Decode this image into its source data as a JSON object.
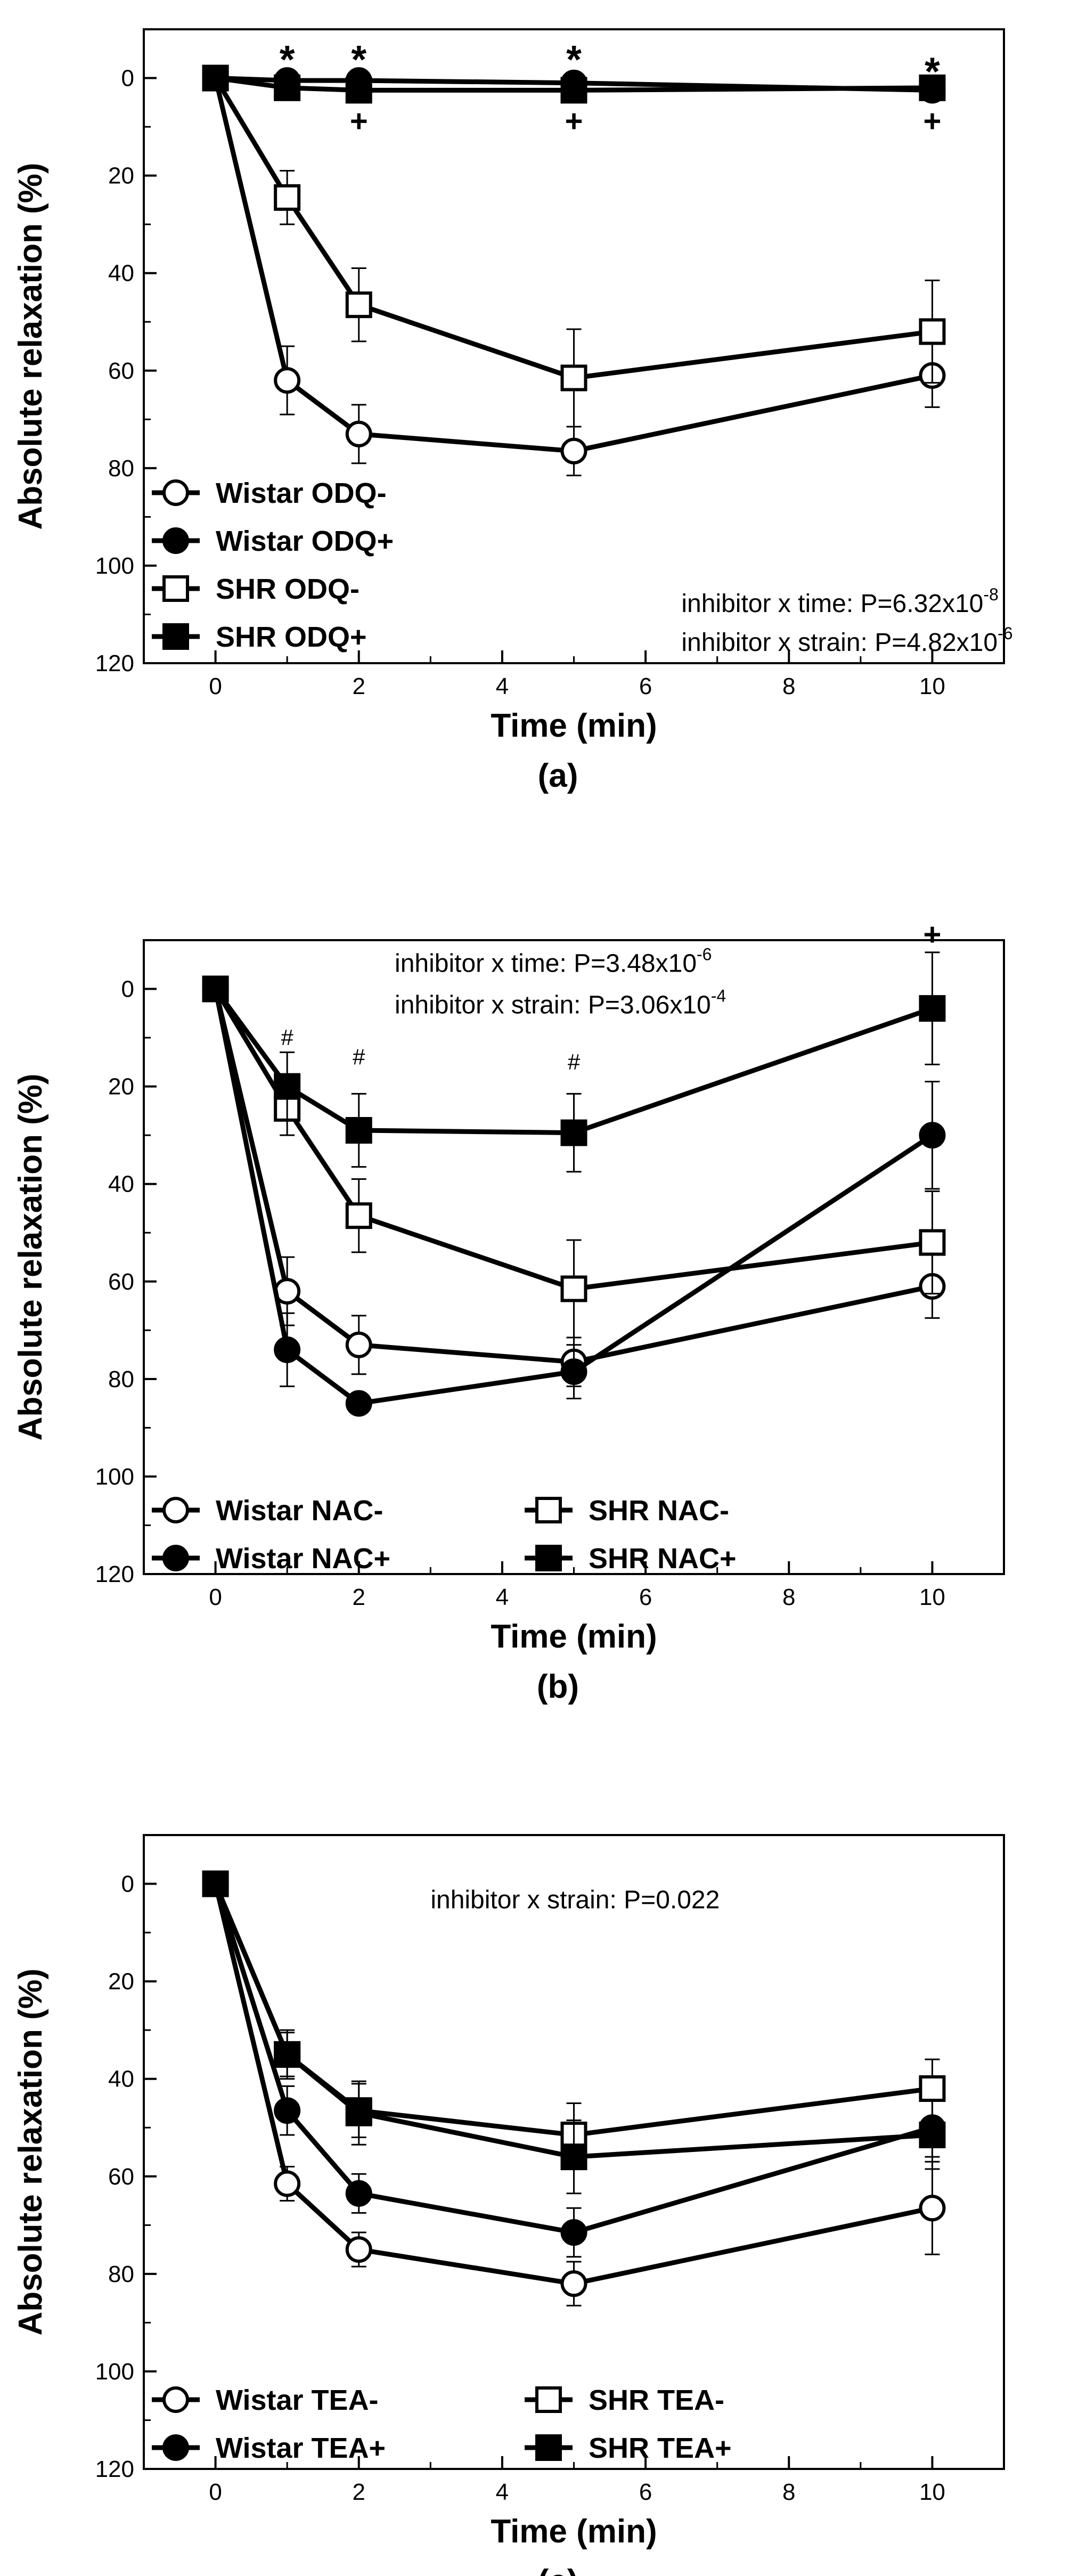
{
  "chart_data": [
    {
      "type": "line",
      "panel_label": "(a)",
      "xlabel": "Time (min)",
      "ylabel": "Absolute relaxation (%)",
      "xlim": [
        -1,
        11
      ],
      "ylim": [
        0,
        120
      ],
      "y_inverted": true,
      "x_ticks": [
        0,
        2,
        4,
        6,
        8,
        10
      ],
      "y_ticks": [
        0,
        20,
        40,
        60,
        80,
        100,
        120
      ],
      "x": [
        0,
        1,
        2,
        5,
        10
      ],
      "legend_position": "bottom-left",
      "series": [
        {
          "name": "Wistar ODQ-",
          "marker": "circle-open",
          "values": [
            0,
            62,
            73,
            76.5,
            61
          ],
          "errors": [
            0,
            7,
            6,
            5,
            6.5
          ]
        },
        {
          "name": "Wistar ODQ+",
          "marker": "circle-filled",
          "values": [
            0,
            0.5,
            0.5,
            1,
            2.5
          ],
          "errors": [
            0,
            0.5,
            0.5,
            0.5,
            0.5
          ]
        },
        {
          "name": "SHR ODQ-",
          "marker": "square-open",
          "values": [
            0,
            24.5,
            46.5,
            61.5,
            52
          ],
          "errors": [
            0,
            5.5,
            7.5,
            10,
            10.5
          ]
        },
        {
          "name": "SHR ODQ+",
          "marker": "square-filled",
          "values": [
            0,
            2,
            2.5,
            2.5,
            2
          ],
          "errors": [
            0,
            0.5,
            0.5,
            0.5,
            0.5
          ]
        }
      ],
      "annotations": [
        {
          "text": "*",
          "type": "star",
          "x": 1,
          "y": -5
        },
        {
          "text": "*",
          "type": "star",
          "x": 2,
          "y": -5
        },
        {
          "text": "*",
          "type": "star",
          "x": 5,
          "y": -5
        },
        {
          "text": "*",
          "type": "star",
          "x": 10,
          "y": -2.5
        },
        {
          "text": "+",
          "type": "plus",
          "x": 2,
          "y": 9
        },
        {
          "text": "+",
          "type": "plus",
          "x": 5,
          "y": 9
        },
        {
          "text": "+",
          "type": "plus",
          "x": 10,
          "y": 9
        }
      ],
      "stats": [
        {
          "label": "inhibitor x time: P=6.32x10",
          "exponent": "-8",
          "x": 6.5,
          "y": 109.5
        },
        {
          "label": "inhibitor x strain: P=4.82x10",
          "exponent": "-6",
          "x": 6.5,
          "y": 117.5
        }
      ]
    },
    {
      "type": "line",
      "panel_label": "(b)",
      "xlabel": "Time (min)",
      "ylabel": "Absolute relaxation (%)",
      "xlim": [
        -1,
        11
      ],
      "ylim": [
        0,
        120
      ],
      "y_inverted": true,
      "x_ticks": [
        0,
        2,
        4,
        6,
        8,
        10
      ],
      "y_ticks": [
        0,
        20,
        40,
        60,
        80,
        100,
        120
      ],
      "x": [
        0,
        1,
        2,
        5,
        10
      ],
      "legend_position": "bottom-left",
      "series": [
        {
          "name": "Wistar NAC-",
          "marker": "circle-open",
          "values": [
            0,
            62,
            73,
            76.5,
            61
          ],
          "errors": [
            0,
            7,
            6,
            5,
            6.5
          ]
        },
        {
          "name": "Wistar NAC+",
          "marker": "circle-filled",
          "values": [
            0,
            74,
            85,
            78.5,
            30
          ],
          "errors": [
            0,
            7.5,
            0.5,
            5.5,
            11
          ]
        },
        {
          "name": "SHR NAC-",
          "marker": "square-open",
          "values": [
            0,
            24.5,
            46.5,
            61.5,
            52
          ],
          "errors": [
            0,
            5.5,
            7.5,
            10,
            10.5
          ]
        },
        {
          "name": "SHR NAC+",
          "marker": "square-filled",
          "values": [
            0,
            20,
            29,
            29.5,
            4
          ],
          "errors": [
            0,
            7,
            7.5,
            8,
            11.5
          ]
        }
      ],
      "annotations": [
        {
          "text": "#",
          "type": "hash",
          "x": 1,
          "y": 10
        },
        {
          "text": "#",
          "type": "hash",
          "x": 2,
          "y": 14
        },
        {
          "text": "#",
          "type": "hash",
          "x": 5,
          "y": 15
        },
        {
          "text": "+",
          "type": "plus",
          "x": 10,
          "y": -11
        }
      ],
      "stats": [
        {
          "label": "inhibitor x time: P=3.48x10",
          "exponent": "-6",
          "x": 2.5,
          "y": -3.5
        },
        {
          "label": "inhibitor x strain: P=3.06x10",
          "exponent": "-4",
          "x": 2.5,
          "y": 5
        }
      ]
    },
    {
      "type": "line",
      "panel_label": "(c)",
      "xlabel": "Time (min)",
      "ylabel": "Absolute relaxation (%)",
      "xlim": [
        -1,
        11
      ],
      "ylim": [
        0,
        120
      ],
      "y_inverted": true,
      "x_ticks": [
        0,
        2,
        4,
        6,
        8,
        10
      ],
      "y_ticks": [
        0,
        20,
        40,
        60,
        80,
        100,
        120
      ],
      "x": [
        0,
        1,
        2,
        5,
        10
      ],
      "legend_position": "bottom-left",
      "series": [
        {
          "name": "Wistar TEA-",
          "marker": "circle-open",
          "values": [
            0,
            61.5,
            75,
            82,
            66.5
          ],
          "errors": [
            0,
            3.5,
            3.5,
            4.5,
            9.5
          ]
        },
        {
          "name": "Wistar TEA+",
          "marker": "circle-filled",
          "values": [
            0,
            46.5,
            63.5,
            71.5,
            50
          ],
          "errors": [
            0,
            5,
            4,
            5,
            6
          ]
        },
        {
          "name": "SHR TEA-",
          "marker": "square-open",
          "values": [
            0,
            35,
            46.5,
            51.5,
            42
          ],
          "errors": [
            0,
            5,
            5.5,
            6.5,
            6
          ]
        },
        {
          "name": "SHR TEA+",
          "marker": "square-filled",
          "values": [
            0,
            35,
            47,
            56,
            51.5
          ],
          "errors": [
            0,
            4.5,
            6.5,
            7.5,
            7
          ]
        }
      ],
      "annotations": [],
      "stats": [
        {
          "label": "inhibitor x strain: P=0.022",
          "exponent": "",
          "x": 3,
          "y": 5
        }
      ]
    }
  ]
}
